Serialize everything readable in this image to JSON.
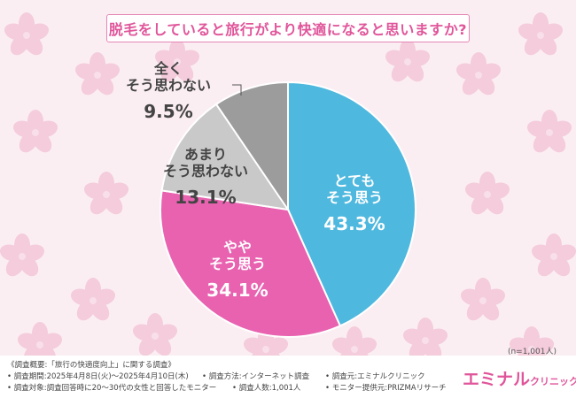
{
  "title": "脱毛をしていると旅行がより快適になると思いますか?",
  "chart_data": {
    "type": "pie",
    "title": "脱毛をしていると旅行がより快適になると思いますか?",
    "slices": [
      {
        "label_lines": [
          "とても",
          "そう思う"
        ],
        "value": 43.3,
        "value_label": "43.3%",
        "color": "#4fb8de"
      },
      {
        "label_lines": [
          "やや",
          "そう思う"
        ],
        "value": 34.1,
        "value_label": "34.1%",
        "color": "#e862b0"
      },
      {
        "label_lines": [
          "あまり",
          "そう思わない"
        ],
        "value": 13.1,
        "value_label": "13.1%",
        "color": "#c9c9c9"
      },
      {
        "label_lines": [
          "全く",
          "そう思わない"
        ],
        "value": 9.5,
        "value_label": "9.5%",
        "color": "#9c9c9c"
      }
    ]
  },
  "sample_size": "(n=1,001人)",
  "footer": {
    "line1": "《調査概要:「旅行の快適度向上」に関する調査》",
    "period": "• 調査期間:2025年4月8日(火)〜2025年4月10日(木)",
    "method": "• 調査方法:インターネット調査",
    "org": "• 調査元:エミナルクリニック",
    "target": "• 調査対象:調査回答時に20〜30代の女性と回答したモニター",
    "count": "• 調査人数:1,001人",
    "provider": "• モニター提供元:PRIZMAリサーチ"
  },
  "brand": {
    "main": "エミナル",
    "sub": "クリニック"
  },
  "colors": {
    "accent": "#e0559a",
    "background": "#fbeef3",
    "flower": "#f2bfd2"
  }
}
